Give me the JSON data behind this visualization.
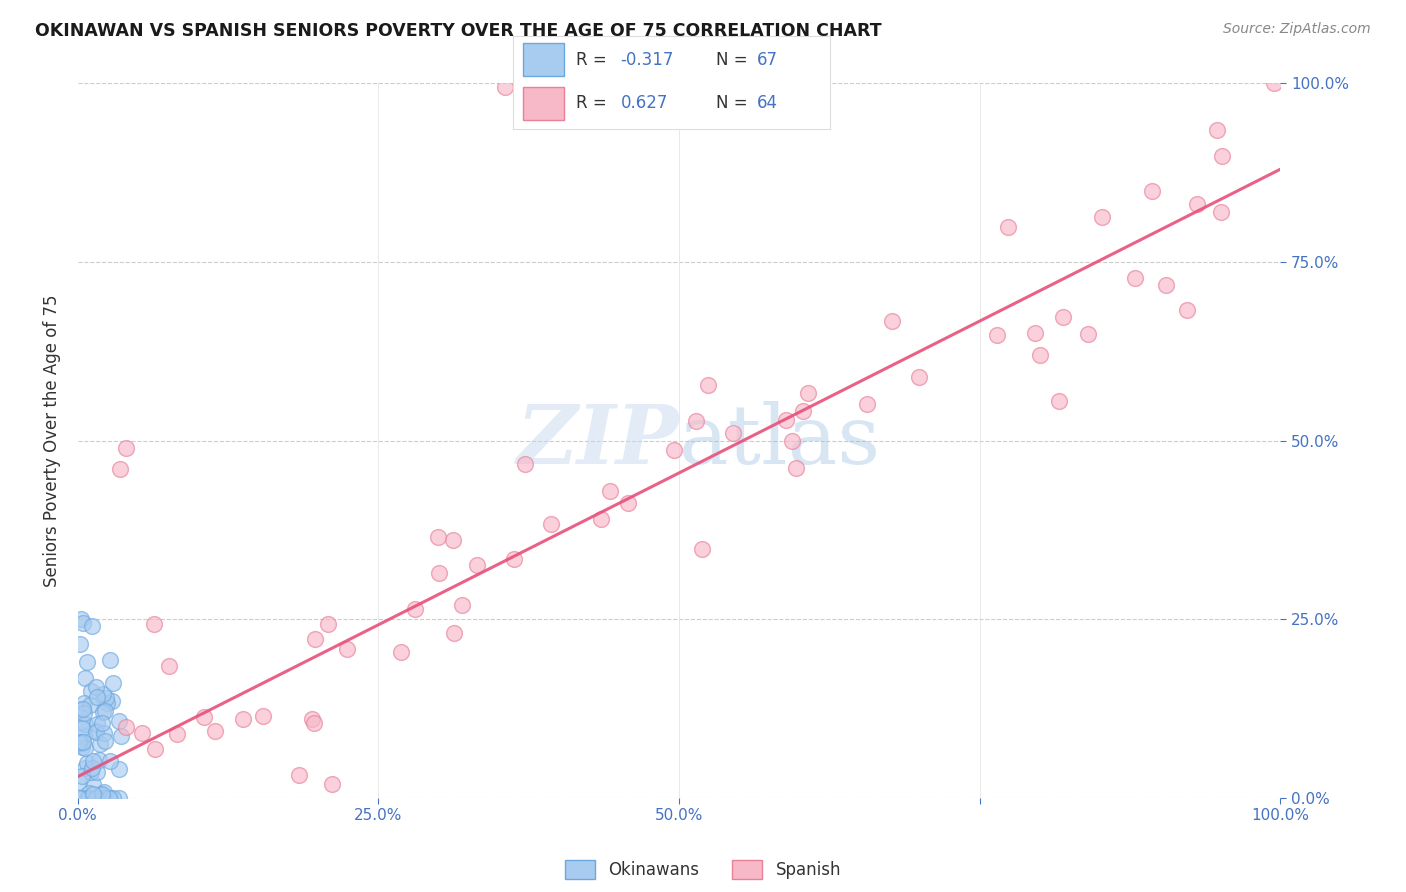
{
  "title": "OKINAWAN VS SPANISH SENIORS POVERTY OVER THE AGE OF 75 CORRELATION CHART",
  "source": "Source: ZipAtlas.com",
  "ylabel": "Seniors Poverty Over the Age of 75",
  "watermark_zip": "ZIP",
  "watermark_atlas": "atlas",
  "okinawan_color_face": "#A8CBF0",
  "okinawan_color_edge": "#6CA8E0",
  "spanish_color_face": "#F7B8C8",
  "spanish_color_edge": "#E88098",
  "trendline_color": "#E8507A",
  "bg_color": "#ffffff",
  "grid_color": "#CCCCCC",
  "axis_color": "#4472C4",
  "text_color": "#333333",
  "R_okinawan": -0.317,
  "N_okinawan": 67,
  "R_spanish": 0.627,
  "N_spanish": 64,
  "xlim": [
    0.0,
    1.0
  ],
  "ylim": [
    0.0,
    1.0
  ],
  "xtick_vals": [
    0.0,
    0.25,
    0.5,
    0.75,
    1.0
  ],
  "xtick_labels": [
    "0.0%",
    "25.0%",
    "50.0%",
    "",
    "100.0%"
  ],
  "ytick_vals": [
    0.0,
    0.25,
    0.5,
    0.75,
    1.0
  ],
  "ytick_labels": [
    "0.0%",
    "25.0%",
    "50.0%",
    "75.0%",
    "100.0%"
  ],
  "legend_label_okinawan": "Okinawans",
  "legend_label_spanish": "Spanish"
}
